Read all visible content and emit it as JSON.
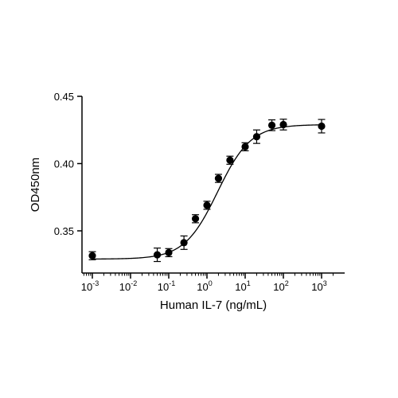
{
  "chart_data": {
    "type": "scatter",
    "title": "",
    "xlabel": "Human IL-7 (ng/mL)",
    "ylabel": "OD450nm",
    "x_scale": "log10",
    "xlim": [
      0.0006,
      2500
    ],
    "ylim": [
      0.33,
      0.45
    ],
    "x_ticks": [
      {
        "value": 0.001,
        "base": "10",
        "exp": "-3"
      },
      {
        "value": 0.01,
        "base": "10",
        "exp": "-2"
      },
      {
        "value": 0.1,
        "base": "10",
        "exp": "-1"
      },
      {
        "value": 1,
        "base": "10",
        "exp": "0"
      },
      {
        "value": 10,
        "base": "10",
        "exp": "1"
      },
      {
        "value": 100,
        "base": "10",
        "exp": "2"
      },
      {
        "value": 1000,
        "base": "10",
        "exp": "3"
      }
    ],
    "y_ticks": [
      {
        "value": 0.35,
        "label": "0.35"
      },
      {
        "value": 0.4,
        "label": "0.40"
      },
      {
        "value": 0.45,
        "label": "0.45"
      }
    ],
    "grid": false,
    "legend": "none",
    "series": [
      {
        "points": [
          {
            "x": 0.001,
            "y": 0.3315,
            "err": 0.003
          },
          {
            "x": 0.05,
            "y": 0.3322,
            "err": 0.005
          },
          {
            "x": 0.1,
            "y": 0.3338,
            "err": 0.003
          },
          {
            "x": 0.25,
            "y": 0.3412,
            "err": 0.005
          },
          {
            "x": 0.5,
            "y": 0.359,
            "err": 0.003
          },
          {
            "x": 1,
            "y": 0.369,
            "err": 0.003
          },
          {
            "x": 2,
            "y": 0.389,
            "err": 0.003
          },
          {
            "x": 4,
            "y": 0.4025,
            "err": 0.003
          },
          {
            "x": 10,
            "y": 0.4125,
            "err": 0.003
          },
          {
            "x": 20,
            "y": 0.42,
            "err": 0.005
          },
          {
            "x": 50,
            "y": 0.4285,
            "err": 0.004
          },
          {
            "x": 100,
            "y": 0.429,
            "err": 0.004
          },
          {
            "x": 1000,
            "y": 0.4278,
            "err": 0.005
          }
        ],
        "fit": {
          "type": "4PL",
          "bottom": 0.329,
          "top": 0.429,
          "ec50": 1.9,
          "hill": 1.0
        },
        "color": "#000000"
      }
    ]
  }
}
